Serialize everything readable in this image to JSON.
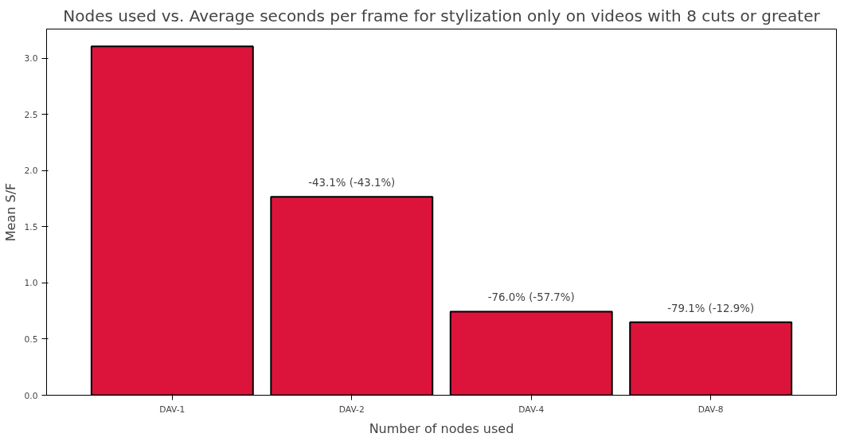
{
  "chart_data": {
    "type": "bar",
    "title": "Nodes used vs. Average seconds per frame for stylization only on videos with 8 cuts or greater",
    "xlabel": "Number of nodes used",
    "ylabel": "Mean S/F",
    "categories": [
      "DAV-1",
      "DAV-2",
      "DAV-4",
      "DAV-8"
    ],
    "values": [
      3.105,
      1.767,
      0.745,
      0.65
    ],
    "color": "#dc143c",
    "ylim": [
      0,
      3.26
    ],
    "yticks": [
      {
        "value": 0,
        "label": "0.0"
      },
      {
        "value": 0.5,
        "label": "0.5"
      },
      {
        "value": 1,
        "label": "1.0"
      },
      {
        "value": 1.5,
        "label": "1.5"
      },
      {
        "value": 2,
        "label": "2.0"
      },
      {
        "value": 2.5,
        "label": "2.5"
      },
      {
        "value": 3,
        "label": "3.0"
      }
    ],
    "annotations": [
      {
        "text": "-43.1% (-43.1%)",
        "x": "DAV-2",
        "y": 1.767
      },
      {
        "text": "-76.0% (-57.7%)",
        "x": "DAV-4",
        "y": 0.745
      },
      {
        "text": "-79.1% (-12.9%)",
        "x": "DAV-8",
        "y": 0.65
      }
    ],
    "grid": false
  }
}
